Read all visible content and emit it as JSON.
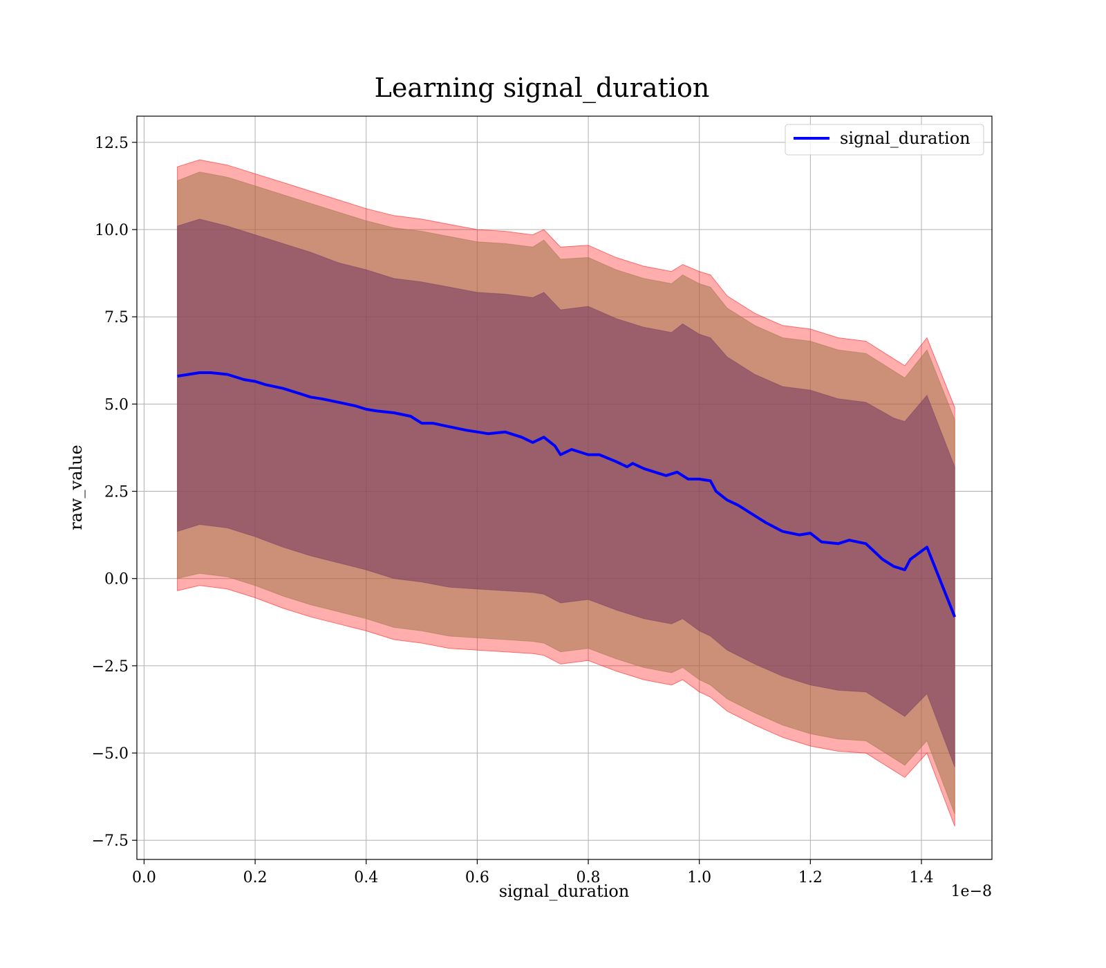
{
  "chart_data": {
    "type": "line",
    "title": "Learning signal_duration",
    "xlabel": "signal_duration",
    "ylabel": "raw_value",
    "x_offset_label": "1e−8",
    "xlim": [
      -0.013,
      1.527
    ],
    "ylim": [
      -8.05,
      13.25
    ],
    "x_ticks": [
      0.0,
      0.2,
      0.4,
      0.6,
      0.8,
      1.0,
      1.2,
      1.4
    ],
    "x_tick_labels": [
      "0.0",
      "0.2",
      "0.4",
      "0.6",
      "0.8",
      "1.0",
      "1.2",
      "1.4"
    ],
    "y_ticks": [
      -7.5,
      -5.0,
      -2.5,
      0.0,
      2.5,
      5.0,
      7.5,
      10.0,
      12.5
    ],
    "y_tick_labels": [
      "−7.5",
      "−5.0",
      "−2.5",
      "0.0",
      "2.5",
      "5.0",
      "7.5",
      "10.0",
      "12.5"
    ],
    "grid": true,
    "legend_position": "top-right",
    "series": [
      {
        "name": "signal_duration",
        "color": "#0000ff",
        "x": [
          0.06,
          0.08,
          0.1,
          0.12,
          0.15,
          0.18,
          0.2,
          0.22,
          0.25,
          0.28,
          0.3,
          0.32,
          0.35,
          0.38,
          0.4,
          0.42,
          0.45,
          0.48,
          0.5,
          0.52,
          0.55,
          0.58,
          0.6,
          0.62,
          0.65,
          0.68,
          0.7,
          0.72,
          0.74,
          0.75,
          0.77,
          0.8,
          0.82,
          0.85,
          0.87,
          0.88,
          0.9,
          0.92,
          0.94,
          0.96,
          0.98,
          1.0,
          1.02,
          1.03,
          1.05,
          1.07,
          1.1,
          1.12,
          1.15,
          1.18,
          1.2,
          1.22,
          1.25,
          1.27,
          1.3,
          1.33,
          1.35,
          1.37,
          1.38,
          1.41,
          1.46
        ],
        "y": [
          5.8,
          5.85,
          5.9,
          5.9,
          5.85,
          5.7,
          5.65,
          5.55,
          5.45,
          5.3,
          5.2,
          5.15,
          5.05,
          4.95,
          4.85,
          4.8,
          4.75,
          4.65,
          4.45,
          4.45,
          4.35,
          4.25,
          4.2,
          4.15,
          4.2,
          4.05,
          3.9,
          4.05,
          3.8,
          3.55,
          3.7,
          3.55,
          3.55,
          3.35,
          3.2,
          3.3,
          3.15,
          3.05,
          2.95,
          3.05,
          2.85,
          2.85,
          2.8,
          2.5,
          2.25,
          2.1,
          1.8,
          1.6,
          1.35,
          1.25,
          1.3,
          1.05,
          1.0,
          1.1,
          1.0,
          0.55,
          0.35,
          0.25,
          0.55,
          0.9,
          -1.1
        ]
      }
    ],
    "bands": [
      {
        "color": "#ff0000",
        "opacity": 0.32,
        "x": [
          0.06,
          0.1,
          0.15,
          0.2,
          0.25,
          0.3,
          0.35,
          0.4,
          0.45,
          0.5,
          0.55,
          0.6,
          0.65,
          0.7,
          0.72,
          0.75,
          0.8,
          0.85,
          0.9,
          0.95,
          0.97,
          1.0,
          1.02,
          1.05,
          1.1,
          1.15,
          1.2,
          1.25,
          1.3,
          1.35,
          1.37,
          1.41,
          1.46
        ],
        "upper": [
          11.8,
          12.0,
          11.85,
          11.6,
          11.35,
          11.1,
          10.85,
          10.6,
          10.4,
          10.3,
          10.15,
          10.0,
          9.95,
          9.85,
          10.0,
          9.5,
          9.55,
          9.2,
          8.95,
          8.8,
          9.0,
          8.8,
          8.7,
          8.1,
          7.6,
          7.25,
          7.15,
          6.9,
          6.8,
          6.3,
          6.1,
          6.9,
          4.9
        ],
        "lower": [
          -0.35,
          -0.2,
          -0.3,
          -0.55,
          -0.85,
          -1.1,
          -1.3,
          -1.5,
          -1.75,
          -1.85,
          -2.0,
          -2.05,
          -2.1,
          -2.15,
          -2.2,
          -2.45,
          -2.35,
          -2.65,
          -2.9,
          -3.05,
          -2.9,
          -3.25,
          -3.4,
          -3.8,
          -4.2,
          -4.55,
          -4.8,
          -4.95,
          -5.0,
          -5.5,
          -5.7,
          -5.0,
          -7.1
        ]
      },
      {
        "color": "#a0784a",
        "opacity": 0.55,
        "x": [
          0.06,
          0.1,
          0.15,
          0.2,
          0.25,
          0.3,
          0.35,
          0.4,
          0.45,
          0.5,
          0.55,
          0.6,
          0.65,
          0.7,
          0.72,
          0.75,
          0.8,
          0.85,
          0.9,
          0.95,
          0.97,
          1.0,
          1.02,
          1.05,
          1.1,
          1.15,
          1.2,
          1.25,
          1.3,
          1.35,
          1.37,
          1.41,
          1.46
        ],
        "upper": [
          11.4,
          11.65,
          11.5,
          11.25,
          11.0,
          10.75,
          10.5,
          10.25,
          10.05,
          9.95,
          9.8,
          9.65,
          9.6,
          9.5,
          9.7,
          9.15,
          9.2,
          8.85,
          8.6,
          8.45,
          8.7,
          8.45,
          8.35,
          7.75,
          7.25,
          6.9,
          6.8,
          6.55,
          6.45,
          5.95,
          5.75,
          6.55,
          4.55
        ],
        "lower": [
          0.0,
          0.15,
          0.05,
          -0.2,
          -0.5,
          -0.75,
          -0.95,
          -1.15,
          -1.4,
          -1.5,
          -1.65,
          -1.7,
          -1.75,
          -1.8,
          -1.85,
          -2.1,
          -2.0,
          -2.3,
          -2.55,
          -2.7,
          -2.55,
          -2.9,
          -3.05,
          -3.45,
          -3.85,
          -4.2,
          -4.45,
          -4.6,
          -4.65,
          -5.15,
          -5.35,
          -4.65,
          -6.75
        ]
      },
      {
        "color": "#7a3f64",
        "opacity": 0.6,
        "x": [
          0.06,
          0.1,
          0.15,
          0.2,
          0.25,
          0.3,
          0.35,
          0.4,
          0.45,
          0.5,
          0.55,
          0.6,
          0.65,
          0.7,
          0.72,
          0.75,
          0.8,
          0.85,
          0.9,
          0.95,
          0.97,
          1.0,
          1.02,
          1.05,
          1.1,
          1.15,
          1.2,
          1.25,
          1.3,
          1.35,
          1.37,
          1.41,
          1.46
        ],
        "upper": [
          10.1,
          10.3,
          10.1,
          9.85,
          9.6,
          9.35,
          9.05,
          8.85,
          8.6,
          8.5,
          8.35,
          8.2,
          8.15,
          8.05,
          8.2,
          7.7,
          7.8,
          7.45,
          7.2,
          7.05,
          7.3,
          7.0,
          6.9,
          6.35,
          5.85,
          5.5,
          5.4,
          5.15,
          5.05,
          4.6,
          4.5,
          5.25,
          3.2
        ],
        "lower": [
          1.35,
          1.55,
          1.45,
          1.2,
          0.9,
          0.65,
          0.45,
          0.25,
          0.0,
          -0.1,
          -0.25,
          -0.3,
          -0.35,
          -0.4,
          -0.45,
          -0.7,
          -0.6,
          -0.9,
          -1.15,
          -1.3,
          -1.15,
          -1.5,
          -1.65,
          -2.05,
          -2.45,
          -2.8,
          -3.05,
          -3.2,
          -3.25,
          -3.75,
          -3.95,
          -3.3,
          -5.4
        ]
      }
    ]
  }
}
